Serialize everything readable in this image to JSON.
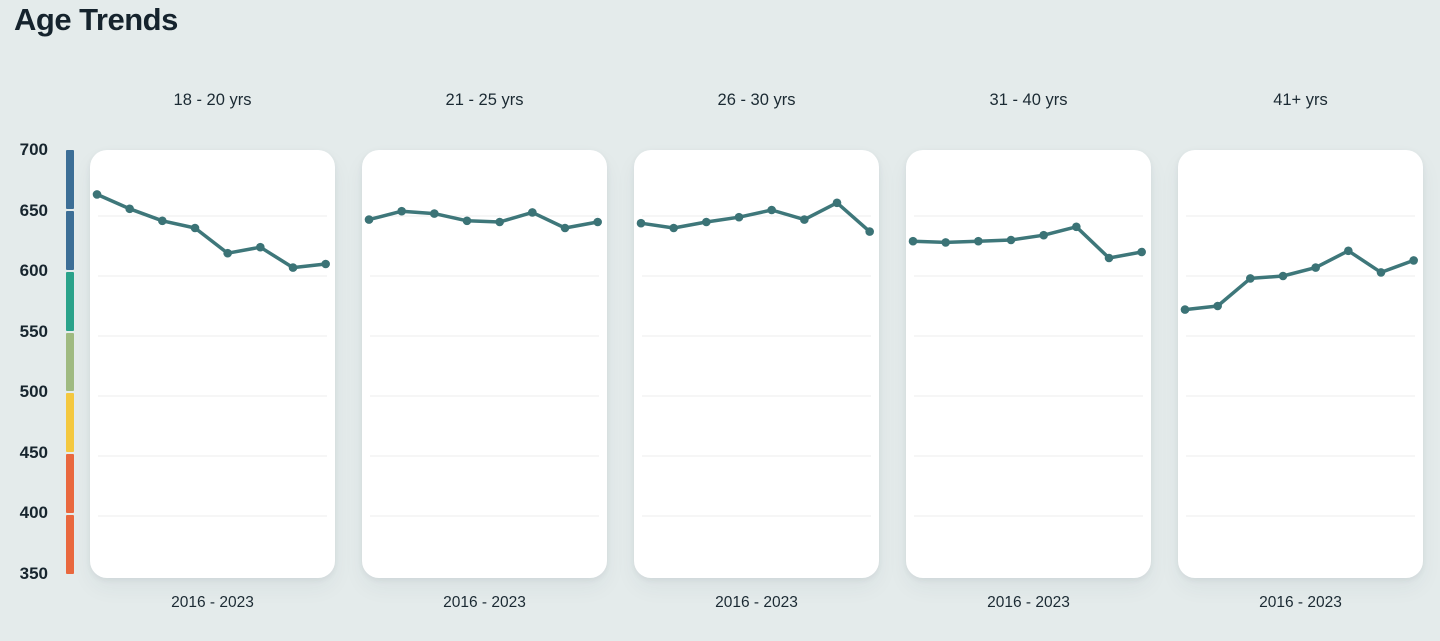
{
  "title": "Age Trends",
  "colors": {
    "background": "#e4ebeb",
    "panel": "#ffffff",
    "line": "#3e777a",
    "marker": "#3b7376",
    "grid": "#ededed",
    "text": "#1b2a33",
    "title_text": "#15232d"
  },
  "y_axis": {
    "ticks": [
      "700",
      "650",
      "600",
      "550",
      "500",
      "450",
      "400",
      "350"
    ],
    "colorbar_segments": [
      {
        "name": "700-650",
        "color": "#3c6e96"
      },
      {
        "name": "650-600",
        "color": "#3c6e96"
      },
      {
        "name": "600-550",
        "color": "#2aa28a"
      },
      {
        "name": "550-500",
        "color": "#9fba81"
      },
      {
        "name": "500-450",
        "color": "#f4c83f"
      },
      {
        "name": "450-400",
        "color": "#e9683e"
      },
      {
        "name": "400-350",
        "color": "#e9683e"
      }
    ]
  },
  "chart_data": {
    "type": "line",
    "title": "Age Trends",
    "x_range_label": "2016 - 2023",
    "x": [
      2016,
      2017,
      2018,
      2019,
      2020,
      2021,
      2022,
      2023
    ],
    "ylim": [
      350,
      700
    ],
    "grid_values": [
      650,
      600,
      550,
      500,
      450,
      400
    ],
    "grid_on": true,
    "legend_position": "none",
    "series": [
      {
        "name": "18 - 20 yrs",
        "values": [
          668,
          656,
          646,
          640,
          619,
          624,
          607,
          610
        ]
      },
      {
        "name": "21 - 25 yrs",
        "values": [
          647,
          654,
          652,
          646,
          645,
          653,
          640,
          645
        ]
      },
      {
        "name": "26 - 30 yrs",
        "values": [
          644,
          640,
          645,
          649,
          655,
          647,
          661,
          637
        ]
      },
      {
        "name": "31 - 40 yrs",
        "values": [
          629,
          628,
          629,
          630,
          634,
          641,
          615,
          620
        ]
      },
      {
        "name": "41+ yrs",
        "values": [
          572,
          575,
          598,
          600,
          607,
          621,
          603,
          613
        ]
      }
    ]
  }
}
